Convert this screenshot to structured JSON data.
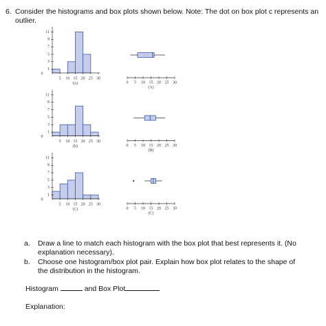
{
  "question": {
    "number": "6.",
    "text": "Consider the histograms and box plots shown below. Note: The dot on box plot c represents an outlier."
  },
  "histograms": [
    {
      "label": "(a)",
      "bins": [
        0,
        5,
        10,
        15,
        20,
        25,
        30
      ],
      "counts": [
        1,
        0,
        3,
        11,
        5,
        0
      ],
      "ylim": [
        0,
        12
      ],
      "yticks": [
        1,
        3,
        5,
        7,
        9,
        11
      ],
      "xticks": [
        0,
        5,
        10,
        15,
        20,
        25,
        30
      ]
    },
    {
      "label": "(b)",
      "bins": [
        0,
        5,
        10,
        15,
        20,
        25,
        30
      ],
      "counts": [
        1,
        3,
        3,
        8,
        3,
        1
      ],
      "ylim": [
        0,
        12
      ],
      "yticks": [
        1,
        3,
        5,
        7,
        9,
        11
      ],
      "xticks": [
        0,
        5,
        10,
        15,
        20,
        25,
        30
      ]
    },
    {
      "label": "(c)",
      "bins": [
        0,
        5,
        10,
        15,
        20,
        25,
        30
      ],
      "counts": [
        2,
        4,
        5,
        7,
        1,
        1
      ],
      "ylim": [
        0,
        12
      ],
      "yticks": [
        1,
        3,
        5,
        7,
        9,
        11
      ],
      "xticks": [
        0,
        5,
        10,
        15,
        20,
        25,
        30
      ]
    }
  ],
  "box_plots": [
    {
      "label": "(A)",
      "min": 2,
      "q1": 6.5,
      "median": 16,
      "q3": 17,
      "max": 24,
      "xlim": [
        0,
        30
      ],
      "xticks": [
        0,
        5,
        10,
        15,
        20,
        25,
        30
      ]
    },
    {
      "label": "(B)",
      "min": 4,
      "q1": 11,
      "median": 14.5,
      "q3": 18,
      "max": 24,
      "xlim": [
        0,
        30
      ],
      "xticks": [
        0,
        5,
        10,
        15,
        20,
        25,
        30
      ]
    },
    {
      "label": "(C)",
      "min": 11,
      "q1": 15,
      "median": 16.5,
      "q3": 18,
      "max": 22,
      "outliers": [
        4
      ],
      "xlim": [
        0,
        30
      ],
      "xticks": [
        0,
        5,
        10,
        15,
        20,
        25,
        30
      ]
    }
  ],
  "tasks": [
    {
      "marker": "a.",
      "text": "Draw a line to match each histogram with the box plot that best represents it. (No explanation necessary)."
    },
    {
      "marker": "b.",
      "text": "Choose one histogram/box plot pair. Explain how box plot relates to the shape of the distribution in the histogram."
    }
  ],
  "answer_line": {
    "histogram": "Histogram",
    "box_plot": "and Box Plot"
  },
  "explanation": "Explanation:"
}
